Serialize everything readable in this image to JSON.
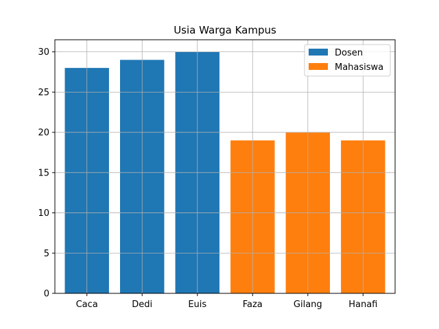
{
  "chart_data": {
    "type": "bar",
    "title": "Usia Warga Kampus",
    "xlabel": "",
    "ylabel": "",
    "ylim": [
      0,
      31.5
    ],
    "yticks": [
      0,
      5,
      10,
      15,
      20,
      25,
      30
    ],
    "grid": true,
    "legend_position": "top-right",
    "categories": [
      "Caca",
      "Dedi",
      "Euis",
      "Faza",
      "Gilang",
      "Hanafi"
    ],
    "series": [
      {
        "name": "Dosen",
        "color": "#1f77b4",
        "values": [
          28,
          29,
          30,
          null,
          null,
          null
        ]
      },
      {
        "name": "Mahasiswa",
        "color": "#ff7f0e",
        "values": [
          null,
          null,
          null,
          19,
          20,
          19
        ]
      }
    ]
  }
}
